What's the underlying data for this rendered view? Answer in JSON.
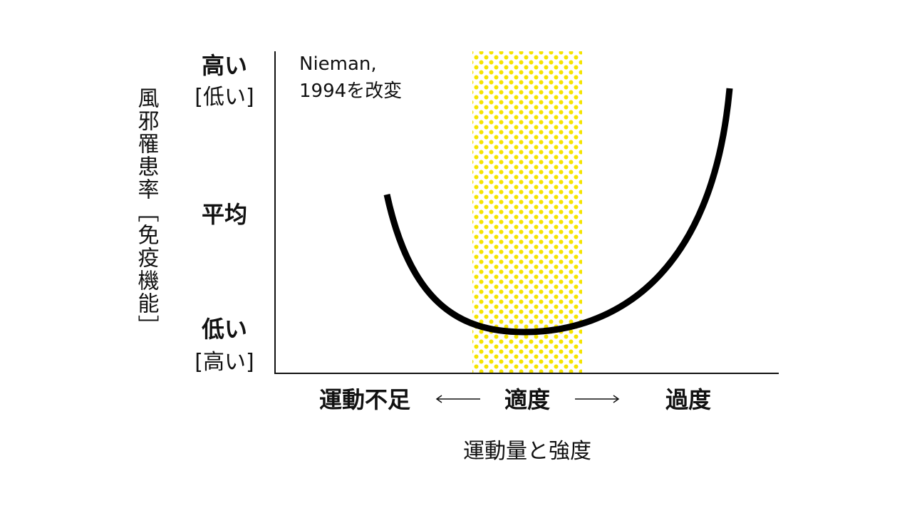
{
  "y_axis": {
    "title": "風邪罹患率［免疫機能］",
    "labels": [
      {
        "main": "高い",
        "sub": "[低い]"
      },
      {
        "main": "平均"
      },
      {
        "main": "低い",
        "sub": "[高い]"
      }
    ]
  },
  "annotation": [
    "Nieman,",
    "1994を改変"
  ],
  "x_axis": {
    "labels": [
      "運動不足",
      "適度",
      "過度"
    ],
    "title": "運動量と強度"
  }
}
